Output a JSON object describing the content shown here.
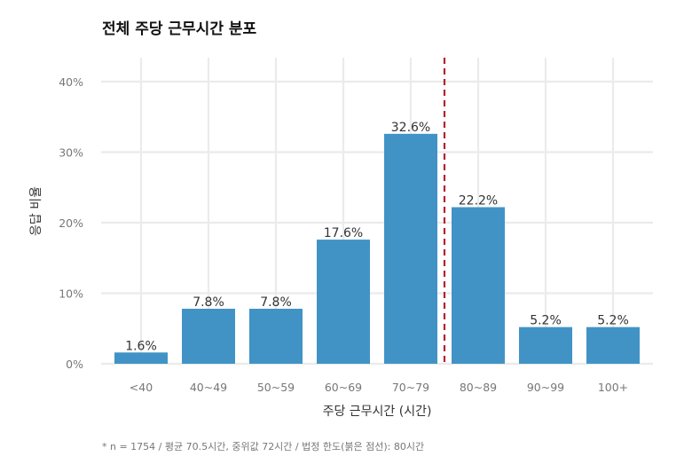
{
  "chart_data": {
    "type": "bar",
    "title": "전체 주당 근무시간 분포",
    "xlabel": "주당 근무시간 (시간)",
    "ylabel": "응답 비율",
    "categories": [
      "<40",
      "40~49",
      "50~59",
      "60~69",
      "70~79",
      "80~89",
      "90~99",
      "100+"
    ],
    "values": [
      1.6,
      7.8,
      7.8,
      17.6,
      32.6,
      22.2,
      5.2,
      5.2
    ],
    "data_labels": [
      "1.6%",
      "7.8%",
      "7.8%",
      "17.6%",
      "32.6%",
      "22.2%",
      "5.2%",
      "5.2%"
    ],
    "ylim": [
      0,
      43
    ],
    "yticks": [
      0,
      10,
      20,
      30,
      40
    ],
    "ytick_labels": [
      "0%",
      "10%",
      "20%",
      "30%",
      "40%"
    ],
    "reference_line": {
      "position_between": [
        "70~79",
        "80~89"
      ],
      "value_hours": 80,
      "style": "dashed",
      "color": "#b2232f"
    },
    "bar_color": "#4193c6",
    "grid": true,
    "caption": "* n = 1754 / 평균 70.5시간, 중위값 72시간 / 법정 한도(붉은 점선): 80시간"
  }
}
